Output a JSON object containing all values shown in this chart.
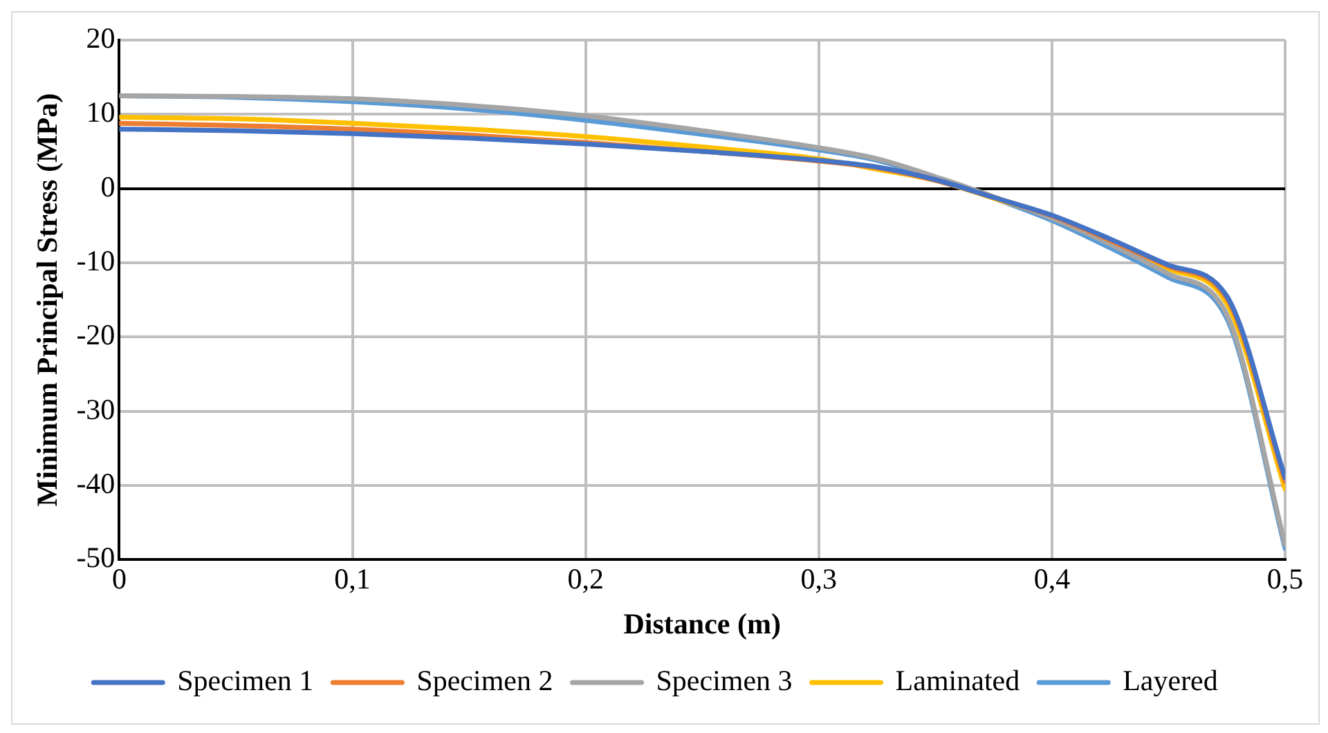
{
  "chart_data": {
    "type": "line",
    "xlabel": "Distance (m)",
    "ylabel": "Minimum Principal Stress (MPa)",
    "x": [
      0,
      0.05,
      0.1,
      0.15,
      0.2,
      0.25,
      0.3,
      0.325,
      0.35,
      0.375,
      0.4,
      0.425,
      0.45,
      0.475,
      0.5
    ],
    "series": [
      {
        "name": "Specimen 1",
        "color": "#4472c4",
        "values": [
          8,
          7.8,
          7.4,
          6.8,
          6,
          5,
          3.8,
          2.9,
          1.2,
          -1.2,
          -3.6,
          -6.8,
          -10.3,
          -14.5,
          -39
        ]
      },
      {
        "name": "Specimen 2",
        "color": "#ed7d31",
        "values": [
          8.8,
          8.5,
          8,
          7.2,
          6.2,
          5,
          3.7,
          2.8,
          1.1,
          -1.2,
          -3.7,
          -7,
          -10.5,
          -14.8,
          -39.5
        ]
      },
      {
        "name": "Specimen 3",
        "color": "#a5a5a5",
        "values": [
          12.5,
          12.4,
          12.1,
          11.2,
          9.8,
          7.8,
          5.5,
          4,
          1.6,
          -1.1,
          -4,
          -7.5,
          -11.5,
          -17,
          -48
        ]
      },
      {
        "name": "Laminated",
        "color": "#ffc000",
        "values": [
          9.6,
          9.4,
          8.8,
          8,
          7,
          5.6,
          4,
          2.6,
          1.1,
          -1.3,
          -3.8,
          -7.2,
          -10.8,
          -15.5,
          -40.5
        ]
      },
      {
        "name": "Layered",
        "color": "#5b9bd5",
        "values": [
          12.5,
          12.3,
          11.7,
          10.7,
          9.2,
          7.3,
          5.2,
          3.8,
          1.4,
          -1.3,
          -4.3,
          -8,
          -12,
          -17.5,
          -48.5
        ]
      }
    ],
    "xlim": [
      0,
      0.5
    ],
    "xticks": [
      {
        "value": 0,
        "label": "0"
      },
      {
        "value": 0.1,
        "label": "0,1"
      },
      {
        "value": 0.2,
        "label": "0,2"
      },
      {
        "value": 0.3,
        "label": "0,3"
      },
      {
        "value": 0.4,
        "label": "0,4"
      },
      {
        "value": 0.5,
        "label": "0,5"
      }
    ],
    "ylim": [
      -50,
      20
    ],
    "yticks": [
      -50,
      -40,
      -30,
      -20,
      -10,
      0,
      10,
      20
    ],
    "grid": true,
    "legend": "bottom",
    "marker": "none",
    "line_style": "solid"
  }
}
